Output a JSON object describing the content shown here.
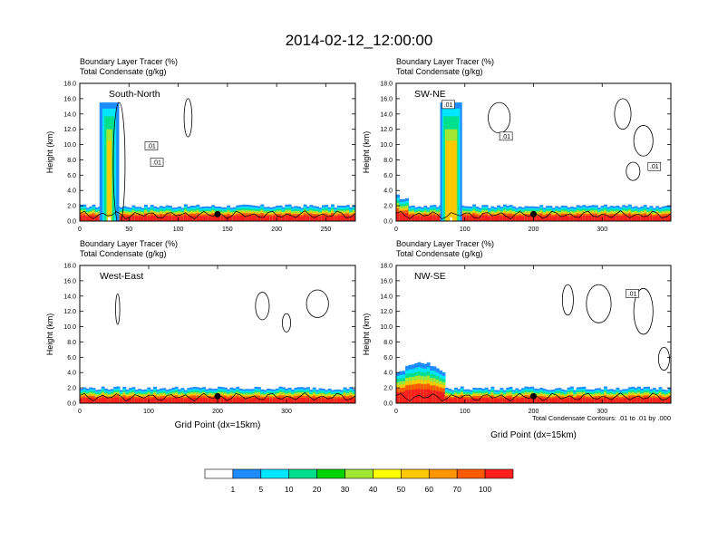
{
  "title": "2014-02-12_12:00:00",
  "colors": {
    "c1": "#ffffff",
    "c5": "#1e8cff",
    "c10": "#00e6ff",
    "c20": "#00e08c",
    "c30": "#00d400",
    "c40": "#a0e632",
    "c50": "#ffff00",
    "c60": "#ffc800",
    "c70": "#ff9600",
    "c80": "#ff5a00",
    "c100": "#ff1e1e",
    "contour": "#000000"
  },
  "footnote": "Total Condensate Contours: .01 to .01 by .000",
  "colorbar": {
    "labels": [
      "1",
      "5",
      "10",
      "20",
      "30",
      "40",
      "50",
      "60",
      "70",
      "100"
    ]
  },
  "chart_data": [
    {
      "type": "heatmap",
      "panel": "South-North",
      "title_line1": "Boundary Layer Tracer",
      "title_unit1": "(%)",
      "title_line2": "Total Condensate",
      "title_unit2": "(g/kg)",
      "ylabel": "Height (km)",
      "xlabel": "",
      "xlim": [
        0,
        280
      ],
      "ylim": [
        0,
        18
      ],
      "xticks": [
        0,
        50,
        100,
        150,
        200,
        250
      ],
      "yticks": [
        0,
        2,
        4,
        6,
        8,
        10,
        12,
        14,
        16,
        18
      ],
      "ytick_labels": [
        "0.0",
        "2.0",
        "4.0",
        "6.0",
        "8.0",
        "10.0",
        "12.0",
        "14.0",
        "16.0",
        "18.0"
      ],
      "marker_x": 140,
      "contour_labels": [
        ".01",
        ".01"
      ],
      "plume_x": [
        24,
        36
      ],
      "plume_top_km": 15.5
    },
    {
      "type": "heatmap",
      "panel": "SW-NE",
      "title_line1": "Boundary Layer Tracer",
      "title_unit1": "(%)",
      "title_line2": "Total Condensate",
      "title_unit2": "(g/kg)",
      "ylabel": "Height (km)",
      "xlabel": "",
      "xlim": [
        0,
        400
      ],
      "ylim": [
        0,
        18
      ],
      "xticks": [
        0,
        100,
        200,
        300
      ],
      "yticks": [
        0,
        2,
        4,
        6,
        8,
        10,
        12,
        14,
        16,
        18
      ],
      "ytick_labels": [
        "0.0",
        "2.0",
        "4.0",
        "6.0",
        "8.0",
        "10.0",
        "12.0",
        "14.0",
        "16.0",
        "18.0"
      ],
      "marker_x": 200,
      "contour_labels": [
        ".01",
        ".01",
        ".01"
      ],
      "plume_x": [
        68,
        92
      ],
      "plume_top_km": 15.5
    },
    {
      "type": "heatmap",
      "panel": "West-East",
      "title_line1": "Boundary Layer Tracer",
      "title_unit1": "(%)",
      "title_line2": "Total Condensate",
      "title_unit2": "(g/kg)",
      "ylabel": "Height (km)",
      "xlabel": "Grid Point (dx=15km)",
      "xlim": [
        0,
        400
      ],
      "ylim": [
        0,
        18
      ],
      "xticks": [
        0,
        100,
        200,
        300
      ],
      "yticks": [
        0,
        2,
        4,
        6,
        8,
        10,
        12,
        14,
        16,
        18
      ],
      "ytick_labels": [
        "0.0",
        "2.0",
        "4.0",
        "6.0",
        "8.0",
        "10.0",
        "12.0",
        "14.0",
        "16.0",
        "18.0"
      ],
      "marker_x": 200,
      "contour_labels": [],
      "plume_x": null,
      "plume_top_km": 0
    },
    {
      "type": "heatmap",
      "panel": "NW-SE",
      "title_line1": "Boundary Layer Tracer",
      "title_unit1": "(%)",
      "title_line2": "Total Condensate",
      "title_unit2": "(g/kg)",
      "ylabel": "Height (km)",
      "xlabel": "Grid Point (dx=15km)",
      "xlim": [
        0,
        400
      ],
      "ylim": [
        0,
        18
      ],
      "xticks": [
        0,
        100,
        200,
        300
      ],
      "yticks": [
        0,
        2,
        4,
        6,
        8,
        10,
        12,
        14,
        16,
        18
      ],
      "ytick_labels": [
        "0.0",
        "2.0",
        "4.0",
        "6.0",
        "8.0",
        "10.0",
        "12.0",
        "14.0",
        "16.0",
        "18.0"
      ],
      "marker_x": 200,
      "contour_labels": [
        ".01"
      ],
      "plume_x": null,
      "plume_top_km": 0
    }
  ]
}
